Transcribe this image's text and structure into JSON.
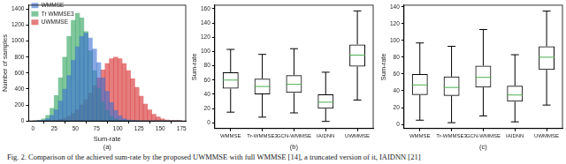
{
  "chart_data": [
    {
      "type": "histogram",
      "x_label": "Sum-rate",
      "y_label": "Number of samples",
      "panel_label": "(a)",
      "bins": [
        0,
        5,
        10,
        15,
        20,
        25,
        30,
        35,
        40,
        45,
        50,
        55,
        60,
        65,
        70,
        75,
        80,
        85,
        90,
        95,
        100,
        105,
        110,
        115,
        120,
        125,
        130,
        135,
        140,
        145,
        150,
        155,
        160,
        165,
        170,
        175
      ],
      "series": [
        {
          "name": "WMMSE",
          "color": "#3b6fd0",
          "values": [
            0,
            2,
            10,
            30,
            70,
            140,
            250,
            400,
            570,
            760,
            930,
            1060,
            1100,
            1040,
            900,
            730,
            540,
            370,
            230,
            130,
            65,
            30,
            12,
            5,
            2,
            0,
            0,
            0,
            0,
            0,
            0,
            0,
            0,
            0,
            0
          ]
        },
        {
          "name": "Tr WMMSE3",
          "color": "#2ca05a",
          "values": [
            0,
            5,
            25,
            70,
            160,
            320,
            540,
            800,
            1060,
            1260,
            1350,
            1290,
            1120,
            880,
            630,
            410,
            240,
            130,
            60,
            25,
            10,
            4,
            1,
            0,
            0,
            0,
            0,
            0,
            0,
            0,
            0,
            0,
            0,
            0,
            0
          ]
        },
        {
          "name": "UWMMSE",
          "color": "#d62728",
          "values": [
            0,
            0,
            0,
            2,
            5,
            10,
            20,
            35,
            60,
            95,
            140,
            200,
            270,
            350,
            440,
            540,
            640,
            720,
            780,
            800,
            780,
            720,
            630,
            530,
            420,
            310,
            210,
            140,
            85,
            50,
            25,
            12,
            5,
            2,
            1
          ]
        }
      ],
      "xlim": [
        -5,
        180
      ],
      "xticks": [
        0,
        25,
        50,
        75,
        100,
        125,
        150,
        175
      ],
      "ylim": [
        0,
        1450
      ],
      "yticks": [
        0,
        200,
        400,
        600,
        800,
        1000,
        1200,
        1400
      ],
      "grid": false,
      "legend": "upper left"
    },
    {
      "type": "box",
      "y_label": "Sum-rate",
      "panel_label": "(b)",
      "color": "#000000",
      "categories": [
        "WMMSE",
        "Tr-WMMSE3",
        "GCN-WMMSE",
        "IAIDNN",
        "UWMMSE"
      ],
      "stats": {
        "min": [
          15,
          8,
          14,
          2,
          32
        ],
        "q1": [
          48,
          40,
          42,
          20,
          79
        ],
        "median": [
          60,
          51,
          54,
          29,
          95
        ],
        "q3": [
          71,
          62,
          67,
          40,
          110
        ],
        "max": [
          103,
          96,
          104,
          71,
          157
        ]
      },
      "ylim": [
        -8,
        165
      ],
      "yticks": [
        0,
        20,
        40,
        60,
        80,
        100,
        120,
        140,
        160
      ],
      "grid": false
    },
    {
      "type": "box",
      "y_label": "Sum-rate",
      "panel_label": "(c)",
      "color": "#000000",
      "categories": [
        "WMMSE",
        "Tr-WMMSE3",
        "GCN-WMMSE",
        "IAIDNN",
        "UWMMSE"
      ],
      "stats": {
        "min": [
          5,
          2,
          10,
          3,
          23
        ],
        "q1": [
          35,
          34,
          44,
          27,
          65
        ],
        "median": [
          47,
          44,
          56,
          35,
          80
        ],
        "q3": [
          60,
          57,
          70,
          46,
          93
        ],
        "max": [
          97,
          93,
          113,
          83,
          135
        ]
      },
      "ylim": [
        -5,
        142
      ],
      "yticks": [
        0,
        20,
        40,
        60,
        80,
        100,
        120,
        140
      ],
      "grid": false
    }
  ],
  "caption": "Fig. 2.   Comparison of the achieved sum-rate by the proposed UWMMSE with full WMMSE [14], a truncated version of it, IAIDNN [21]"
}
